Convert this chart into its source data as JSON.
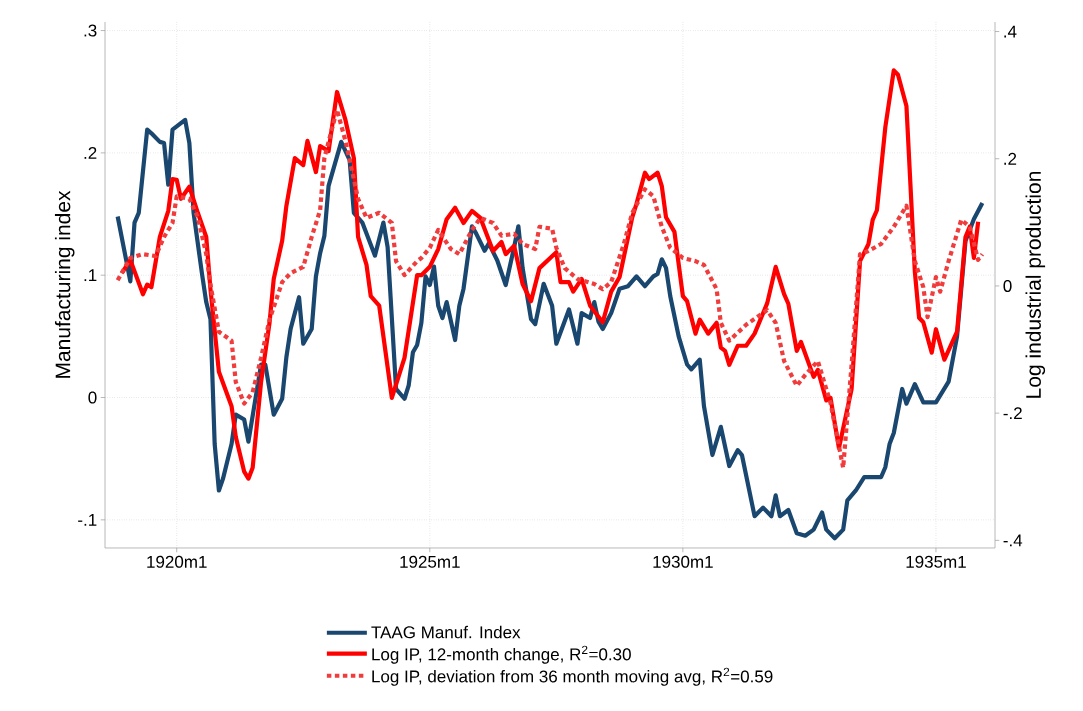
{
  "chart_data": {
    "type": "line",
    "ylabel": "Manufacturing index",
    "y2label": "Log industrial production",
    "xlim": [
      "1918-08",
      "1936-03"
    ],
    "xticks": [
      {
        "value": "1920-01",
        "label": "1920m1"
      },
      {
        "value": "1925-01",
        "label": "1925m1"
      },
      {
        "value": "1930-01",
        "label": "1930m1"
      },
      {
        "value": "1935-01",
        "label": "1935m1"
      }
    ],
    "ylim": [
      -0.123,
      0.307
    ],
    "yticks": [
      {
        "value": -0.1,
        "label": "-.1"
      },
      0,
      {
        "value": 0.1,
        "label": ".1"
      },
      {
        "value": 0.2,
        "label": ".2"
      },
      {
        "value": 0.3,
        "label": ".3"
      }
    ],
    "y2lim": [
      -0.412,
      0.415
    ],
    "y2ticks": [
      {
        "value": -0.4,
        "label": "-.4"
      },
      {
        "value": -0.2,
        "label": "-.2"
      },
      0,
      {
        "value": 0.2,
        "label": ".2"
      },
      {
        "value": 0.4,
        "label": ".4"
      }
    ],
    "grid": true,
    "legend": "bottom",
    "series": [
      {
        "name": "TAAG Manuf. Index",
        "color": "#1a476f",
        "axis": "y",
        "line_style": "solid",
        "x": [
          "1918-11",
          "1919-02",
          "1919-03",
          "1919-04",
          "1919-06",
          "1919-07",
          "1919-09",
          "1919-10",
          "1919-11",
          "1919-12",
          "1920-03",
          "1920-04",
          "1920-05",
          "1920-07",
          "1920-08",
          "1920-09",
          "1920-10",
          "1920-11",
          "1920-12",
          "1921-02",
          "1921-03",
          "1921-05",
          "1921-06",
          "1921-09",
          "1921-10",
          "1921-12",
          "1922-02",
          "1922-03",
          "1922-04",
          "1922-06",
          "1922-07",
          "1922-09",
          "1922-10",
          "1922-11",
          "1922-12",
          "1923-01",
          "1923-04",
          "1923-06",
          "1923-07",
          "1923-09",
          "1923-12",
          "1924-02",
          "1924-03",
          "1924-05",
          "1924-07",
          "1924-08",
          "1924-09",
          "1924-10",
          "1924-11",
          "1924-12",
          "1925-01",
          "1925-02",
          "1925-03",
          "1925-04",
          "1925-05",
          "1925-07",
          "1925-08",
          "1925-09",
          "1925-11",
          "1925-12",
          "1926-02",
          "1926-03",
          "1926-05",
          "1926-07",
          "1926-09",
          "1926-10",
          "1926-11",
          "1927-01",
          "1927-02",
          "1927-04",
          "1927-06",
          "1927-07",
          "1927-10",
          "1927-12",
          "1928-01",
          "1928-03",
          "1928-04",
          "1928-05",
          "1928-06",
          "1928-08",
          "1928-10",
          "1928-12",
          "1929-02",
          "1929-04",
          "1929-06",
          "1929-07",
          "1929-08",
          "1929-09",
          "1929-10",
          "1929-12",
          "1930-02",
          "1930-03",
          "1930-05",
          "1930-06",
          "1930-08",
          "1930-10",
          "1930-12",
          "1931-02",
          "1931-03",
          "1931-06",
          "1931-08",
          "1931-10",
          "1931-11",
          "1931-12",
          "1932-02",
          "1932-04",
          "1932-06",
          "1932-08",
          "1932-10",
          "1932-11",
          "1933-01",
          "1933-03",
          "1933-04",
          "1933-06",
          "1933-08",
          "1933-12",
          "1934-01",
          "1934-02",
          "1934-03",
          "1934-05",
          "1934-06",
          "1934-08",
          "1934-10",
          "1935-01",
          "1935-04",
          "1935-06",
          "1935-08",
          "1935-10",
          "1935-12"
        ],
        "values": [
          0.148,
          0.095,
          0.143,
          0.151,
          0.219,
          0.216,
          0.209,
          0.208,
          0.174,
          0.219,
          0.227,
          0.208,
          0.151,
          0.101,
          0.078,
          0.064,
          -0.038,
          -0.076,
          -0.066,
          -0.038,
          -0.014,
          -0.018,
          -0.036,
          0.027,
          0.027,
          -0.014,
          -0.001,
          0.033,
          0.056,
          0.082,
          0.044,
          0.056,
          0.099,
          0.118,
          0.132,
          0.173,
          0.209,
          0.194,
          0.151,
          0.143,
          0.116,
          0.143,
          0.123,
          0.007,
          -0.001,
          0.01,
          0.037,
          0.043,
          0.061,
          0.099,
          0.092,
          0.107,
          0.075,
          0.065,
          0.078,
          0.047,
          0.075,
          0.089,
          0.14,
          0.134,
          0.12,
          0.126,
          0.112,
          0.092,
          0.123,
          0.14,
          0.106,
          0.064,
          0.06,
          0.093,
          0.075,
          0.044,
          0.072,
          0.044,
          0.069,
          0.065,
          0.078,
          0.062,
          0.056,
          0.069,
          0.089,
          0.091,
          0.099,
          0.091,
          0.099,
          0.101,
          0.113,
          0.106,
          0.083,
          0.05,
          0.027,
          0.023,
          0.031,
          -0.007,
          -0.047,
          -0.024,
          -0.056,
          -0.043,
          -0.047,
          -0.097,
          -0.09,
          -0.097,
          -0.08,
          -0.097,
          -0.092,
          -0.111,
          -0.113,
          -0.108,
          -0.094,
          -0.108,
          -0.115,
          -0.108,
          -0.084,
          -0.076,
          -0.065,
          -0.065,
          -0.057,
          -0.038,
          -0.029,
          0.007,
          -0.005,
          0.011,
          -0.004,
          -0.004,
          0.013,
          0.05,
          0.128,
          0.146,
          0.159
        ]
      },
      {
        "name": "Log IP, 12-month change, R$^{2}$=0.30",
        "color": "#ff0000",
        "axis": "y2",
        "line_style": "solid",
        "x": [
          "1918-12",
          "1919-02",
          "1919-05",
          "1919-06",
          "1919-07",
          "1919-09",
          "1919-11",
          "1919-12",
          "1920-01",
          "1920-02",
          "1920-04",
          "1920-06",
          "1920-08",
          "1920-09",
          "1920-11",
          "1921-02",
          "1921-03",
          "1921-05",
          "1921-06",
          "1921-07",
          "1921-09",
          "1921-11",
          "1921-12",
          "1922-02",
          "1922-03",
          "1922-05",
          "1922-07",
          "1922-08",
          "1922-10",
          "1922-11",
          "1923-01",
          "1923-03",
          "1923-05",
          "1923-07",
          "1923-08",
          "1923-10",
          "1923-11",
          "1924-01",
          "1924-04",
          "1924-07",
          "1924-10",
          "1924-11",
          "1925-01",
          "1925-03",
          "1925-05",
          "1925-07",
          "1925-09",
          "1925-11",
          "1926-01",
          "1926-04",
          "1926-06",
          "1926-07",
          "1926-09",
          "1926-11",
          "1927-01",
          "1927-03",
          "1927-07",
          "1927-08",
          "1927-10",
          "1927-11",
          "1928-01",
          "1928-03",
          "1928-06",
          "1928-08",
          "1928-10",
          "1929-01",
          "1929-02",
          "1929-04",
          "1929-05",
          "1929-07",
          "1929-08",
          "1929-09",
          "1929-11",
          "1930-01",
          "1930-02",
          "1930-04",
          "1930-05",
          "1930-07",
          "1930-09",
          "1930-10",
          "1930-11",
          "1930-12",
          "1931-02",
          "1931-04",
          "1931-06",
          "1931-09",
          "1931-11",
          "1932-01",
          "1932-02",
          "1932-04",
          "1932-05",
          "1932-08",
          "1932-09",
          "1932-11",
          "1932-12",
          "1933-02",
          "1933-05",
          "1933-07",
          "1933-09",
          "1933-10",
          "1933-11",
          "1934-01",
          "1934-03",
          "1934-04",
          "1934-06",
          "1934-08",
          "1934-09",
          "1934-10",
          "1934-12",
          "1935-01",
          "1935-03",
          "1935-06",
          "1935-08",
          "1935-09",
          "1935-10",
          "1935-11"
        ],
        "values": [
          0.02,
          0.041,
          -0.013,
          0.002,
          -0.002,
          0.077,
          0.118,
          0.168,
          0.167,
          0.137,
          0.156,
          0.115,
          0.077,
          -0.005,
          -0.135,
          -0.189,
          -0.237,
          -0.292,
          -0.303,
          -0.286,
          -0.151,
          -0.058,
          0.011,
          0.071,
          0.126,
          0.201,
          0.19,
          0.228,
          0.179,
          0.22,
          0.212,
          0.305,
          0.261,
          0.201,
          0.077,
          0.033,
          -0.016,
          -0.031,
          -0.176,
          -0.113,
          0.017,
          0.017,
          0.03,
          0.058,
          0.105,
          0.123,
          0.099,
          0.118,
          0.107,
          0.055,
          0.069,
          0.05,
          0.063,
          0.003,
          -0.024,
          0.028,
          0.053,
          0.006,
          0.006,
          -0.009,
          0.011,
          -0.031,
          -0.057,
          -0.009,
          0.014,
          0.108,
          0.129,
          0.178,
          0.168,
          0.178,
          0.157,
          0.108,
          0.085,
          -0.016,
          -0.024,
          -0.075,
          -0.053,
          -0.075,
          -0.058,
          -0.097,
          -0.102,
          -0.124,
          -0.094,
          -0.094,
          -0.075,
          -0.027,
          0.03,
          -0.013,
          -0.028,
          -0.102,
          -0.088,
          -0.143,
          -0.132,
          -0.18,
          -0.176,
          -0.255,
          -0.162,
          0.039,
          0.066,
          0.104,
          0.119,
          0.25,
          0.339,
          0.332,
          0.283,
          0.022,
          -0.05,
          -0.057,
          -0.105,
          -0.068,
          -0.116,
          -0.072,
          0.077,
          0.093,
          0.044,
          0.101
        ]
      },
      {
        "name": "Log IP, deviation from 36 month moving avg, R$^{2}$=0.59",
        "color": "#f03c3c",
        "axis": "y2",
        "line_style": "dotted",
        "x": [
          "1918-11",
          "1919-02",
          "1919-05",
          "1919-08",
          "1919-10",
          "1919-12",
          "1920-01",
          "1920-04",
          "1920-06",
          "1920-08",
          "1920-09",
          "1920-11",
          "1921-02",
          "1921-03",
          "1921-05",
          "1921-07",
          "1921-09",
          "1921-11",
          "1922-02",
          "1922-04",
          "1922-07",
          "1922-09",
          "1922-11",
          "1922-12",
          "1923-03",
          "1923-05",
          "1923-08",
          "1923-10",
          "1924-01",
          "1924-04",
          "1924-05",
          "1924-07",
          "1924-10",
          "1924-11",
          "1925-01",
          "1925-03",
          "1925-06",
          "1925-08",
          "1925-11",
          "1926-01",
          "1926-04",
          "1926-06",
          "1926-09",
          "1926-11",
          "1927-02",
          "1927-03",
          "1927-06",
          "1927-07",
          "1927-09",
          "1927-12",
          "1928-04",
          "1928-06",
          "1928-08",
          "1928-11",
          "1929-01",
          "1929-04",
          "1929-06",
          "1929-08",
          "1929-10",
          "1930-01",
          "1930-04",
          "1930-06",
          "1930-09",
          "1930-10",
          "1930-12",
          "1931-04",
          "1931-09",
          "1931-11",
          "1932-01",
          "1932-04",
          "1932-06",
          "1932-09",
          "1932-12",
          "1933-03",
          "1933-05",
          "1933-07",
          "1933-09",
          "1933-12",
          "1934-03",
          "1934-06",
          "1934-08",
          "1934-10",
          "1934-11",
          "1935-01",
          "1935-02",
          "1935-04",
          "1935-07",
          "1935-09",
          "1935-11",
          "1935-12"
        ],
        "values": [
          0.009,
          0.044,
          0.05,
          0.047,
          0.077,
          0.099,
          0.141,
          0.137,
          0.108,
          0.05,
          0.002,
          -0.072,
          -0.086,
          -0.151,
          -0.185,
          -0.167,
          -0.113,
          -0.053,
          0.006,
          0.02,
          0.03,
          0.077,
          0.119,
          0.201,
          0.277,
          0.228,
          0.137,
          0.107,
          0.115,
          0.099,
          0.039,
          0.017,
          0.039,
          0.044,
          0.06,
          0.088,
          0.058,
          0.05,
          0.088,
          0.107,
          0.099,
          0.079,
          0.082,
          0.066,
          0.058,
          0.093,
          0.09,
          0.06,
          0.028,
          0.011,
          0.003,
          -0.005,
          0.006,
          0.066,
          0.115,
          0.152,
          0.141,
          0.093,
          0.06,
          0.044,
          0.039,
          0.033,
          -0.005,
          -0.058,
          -0.086,
          -0.061,
          -0.038,
          -0.058,
          -0.118,
          -0.157,
          -0.14,
          -0.118,
          -0.184,
          -0.286,
          -0.124,
          0.05,
          0.055,
          0.066,
          0.093,
          0.126,
          0.039,
          -0.002,
          -0.049,
          0.014,
          -0.009,
          0.039,
          0.104,
          0.093,
          0.041,
          0.05
        ]
      }
    ]
  }
}
